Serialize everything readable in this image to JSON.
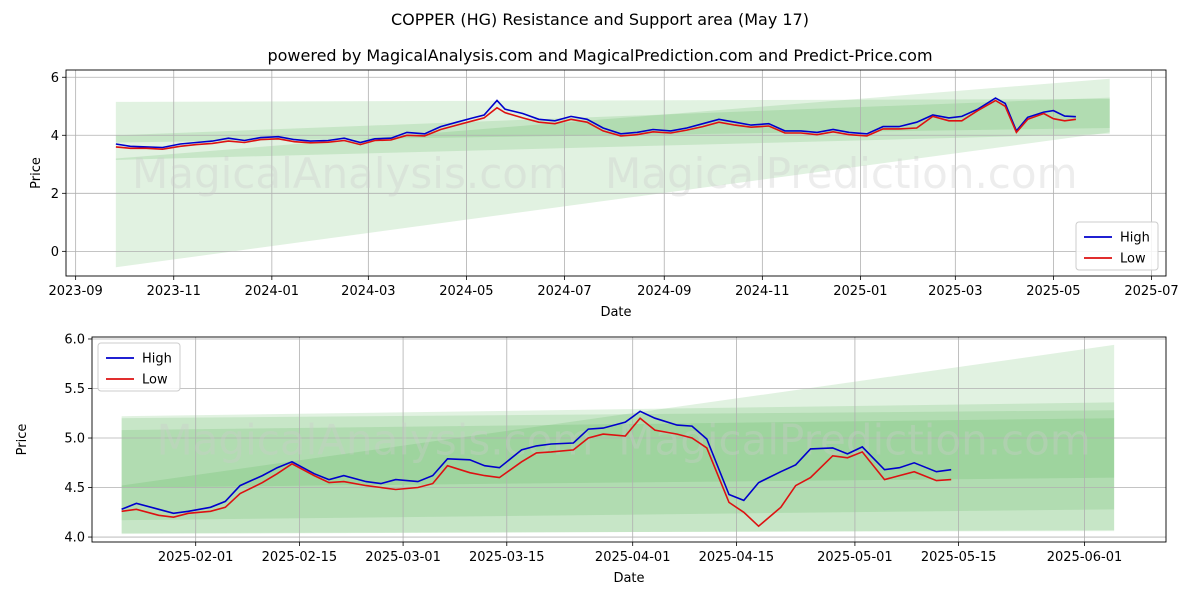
{
  "title": "COPPER (HG) Resistance and Support area (May 17)",
  "subtitle": "powered by MagicalAnalysis.com and MagicalPrediction.com and Predict-Price.com",
  "watermark": [
    "MagicalAnalysis.com",
    "MagicalPrediction.com"
  ],
  "colors": {
    "high": "#0000cc",
    "low": "#dd1111",
    "band": "#2ca02c",
    "grid": "#b0b0b0"
  },
  "chart_data": [
    {
      "type": "line",
      "xlabel": "Date",
      "ylabel": "Price",
      "xlim": [
        "2023-08-26",
        "2025-07-10"
      ],
      "ylim": [
        -0.85,
        6.25
      ],
      "x_ticks": [
        "2023-09",
        "2023-11",
        "2024-01",
        "2024-03",
        "2024-05",
        "2024-07",
        "2024-09",
        "2024-11",
        "2025-01",
        "2025-03",
        "2025-05",
        "2025-07"
      ],
      "y_ticks": [
        0,
        2,
        4,
        6
      ],
      "grid": true,
      "legend": "bottom-right",
      "bands": [
        {
          "x": [
            "2023-09-26",
            "2025-06-05"
          ],
          "upper": [
            5.15,
            5.25
          ],
          "lower": [
            3.75,
            4.25
          ]
        },
        {
          "x": [
            "2023-09-26",
            "2025-06-05"
          ],
          "upper": [
            4.0,
            5.3
          ],
          "lower": [
            3.15,
            4.05
          ]
        },
        {
          "x": [
            "2023-09-26",
            "2025-06-05"
          ],
          "upper": [
            3.2,
            5.95
          ],
          "lower": [
            -0.55,
            4.1
          ]
        }
      ],
      "series": [
        {
          "name": "High",
          "x": [
            "2023-09-26",
            "2023-10-05",
            "2023-10-15",
            "2023-10-25",
            "2023-11-05",
            "2023-11-15",
            "2023-11-25",
            "2023-12-05",
            "2023-12-15",
            "2023-12-25",
            "2024-01-05",
            "2024-01-15",
            "2024-01-25",
            "2024-02-05",
            "2024-02-15",
            "2024-02-25",
            "2024-03-05",
            "2024-03-15",
            "2024-03-25",
            "2024-04-05",
            "2024-04-15",
            "2024-04-25",
            "2024-05-05",
            "2024-05-12",
            "2024-05-20",
            "2024-05-25",
            "2024-06-05",
            "2024-06-15",
            "2024-06-25",
            "2024-07-05",
            "2024-07-15",
            "2024-07-25",
            "2024-08-05",
            "2024-08-15",
            "2024-08-25",
            "2024-09-05",
            "2024-09-15",
            "2024-09-25",
            "2024-10-05",
            "2024-10-15",
            "2024-10-25",
            "2024-11-05",
            "2024-11-15",
            "2024-11-25",
            "2024-12-05",
            "2024-12-15",
            "2024-12-25",
            "2025-01-05",
            "2025-01-15",
            "2025-01-25",
            "2025-02-05",
            "2025-02-15",
            "2025-02-25",
            "2025-03-05",
            "2025-03-15",
            "2025-03-26",
            "2025-04-01",
            "2025-04-08",
            "2025-04-15",
            "2025-04-25",
            "2025-05-01",
            "2025-05-08",
            "2025-05-15"
          ],
          "values": [
            3.7,
            3.62,
            3.6,
            3.58,
            3.7,
            3.75,
            3.8,
            3.9,
            3.82,
            3.92,
            3.95,
            3.85,
            3.8,
            3.82,
            3.9,
            3.75,
            3.88,
            3.9,
            4.1,
            4.05,
            4.3,
            4.45,
            4.6,
            4.7,
            5.2,
            4.9,
            4.75,
            4.55,
            4.5,
            4.65,
            4.55,
            4.25,
            4.05,
            4.1,
            4.2,
            4.15,
            4.25,
            4.4,
            4.55,
            4.45,
            4.35,
            4.4,
            4.15,
            4.15,
            4.1,
            4.2,
            4.1,
            4.05,
            4.3,
            4.3,
            4.45,
            4.7,
            4.6,
            4.65,
            4.9,
            5.28,
            5.1,
            4.15,
            4.62,
            4.8,
            4.85,
            4.66,
            4.64
          ]
        },
        {
          "name": "Low",
          "x": [
            "2023-09-26",
            "2023-10-05",
            "2023-10-15",
            "2023-10-25",
            "2023-11-05",
            "2023-11-15",
            "2023-11-25",
            "2023-12-05",
            "2023-12-15",
            "2023-12-25",
            "2024-01-05",
            "2024-01-15",
            "2024-01-25",
            "2024-02-05",
            "2024-02-15",
            "2024-02-25",
            "2024-03-05",
            "2024-03-15",
            "2024-03-25",
            "2024-04-05",
            "2024-04-15",
            "2024-04-25",
            "2024-05-05",
            "2024-05-12",
            "2024-05-20",
            "2024-05-25",
            "2024-06-05",
            "2024-06-15",
            "2024-06-25",
            "2024-07-05",
            "2024-07-15",
            "2024-07-25",
            "2024-08-05",
            "2024-08-15",
            "2024-08-25",
            "2024-09-05",
            "2024-09-15",
            "2024-09-25",
            "2024-10-05",
            "2024-10-15",
            "2024-10-25",
            "2024-11-05",
            "2024-11-15",
            "2024-11-25",
            "2024-12-05",
            "2024-12-15",
            "2024-12-25",
            "2025-01-05",
            "2025-01-15",
            "2025-01-25",
            "2025-02-05",
            "2025-02-15",
            "2025-02-25",
            "2025-03-05",
            "2025-03-15",
            "2025-03-26",
            "2025-04-01",
            "2025-04-08",
            "2025-04-15",
            "2025-04-25",
            "2025-05-01",
            "2025-05-08",
            "2025-05-15"
          ],
          "values": [
            3.6,
            3.55,
            3.55,
            3.52,
            3.62,
            3.68,
            3.72,
            3.8,
            3.75,
            3.85,
            3.88,
            3.78,
            3.74,
            3.76,
            3.82,
            3.68,
            3.82,
            3.84,
            4.0,
            3.98,
            4.2,
            4.35,
            4.5,
            4.6,
            4.95,
            4.78,
            4.6,
            4.45,
            4.4,
            4.55,
            4.45,
            4.15,
            3.98,
            4.02,
            4.12,
            4.08,
            4.18,
            4.3,
            4.45,
            4.35,
            4.28,
            4.32,
            4.08,
            4.08,
            4.02,
            4.12,
            4.02,
            3.98,
            4.22,
            4.22,
            4.25,
            4.65,
            4.5,
            4.5,
            4.85,
            5.2,
            5.0,
            4.1,
            4.55,
            4.75,
            4.57,
            4.5,
            4.55
          ]
        }
      ]
    },
    {
      "type": "line",
      "xlabel": "Date",
      "ylabel": "Price",
      "xlim": [
        "2025-01-18",
        "2025-06-12"
      ],
      "ylim": [
        3.95,
        6.02
      ],
      "x_ticks": [
        "2025-02-01",
        "2025-02-15",
        "2025-03-01",
        "2025-03-15",
        "2025-04-01",
        "2025-04-15",
        "2025-05-01",
        "2025-05-15",
        "2025-06-01"
      ],
      "y_ticks": [
        4.0,
        4.5,
        5.0,
        5.5,
        6.0
      ],
      "grid": true,
      "legend": "top-left",
      "bands": [
        {
          "x": [
            "2025-01-22",
            "2025-06-05"
          ],
          "upper": [
            5.08,
            5.2
          ],
          "lower": [
            4.17,
            4.28
          ]
        },
        {
          "x": [
            "2025-01-22",
            "2025-06-05"
          ],
          "upper": [
            5.2,
            5.28
          ],
          "lower": [
            4.04,
            4.06
          ]
        },
        {
          "x": [
            "2025-01-22",
            "2025-06-05"
          ],
          "upper": [
            5.22,
            5.36
          ],
          "lower": [
            4.5,
            4.6
          ]
        },
        {
          "x": [
            "2025-01-22",
            "2025-06-05"
          ],
          "upper": [
            4.52,
            5.94
          ],
          "lower": [
            4.03,
            4.07
          ]
        }
      ],
      "series": [
        {
          "name": "High",
          "x": [
            "2025-01-22",
            "2025-01-24",
            "2025-01-27",
            "2025-01-29",
            "2025-01-31",
            "2025-02-03",
            "2025-02-05",
            "2025-02-07",
            "2025-02-10",
            "2025-02-12",
            "2025-02-14",
            "2025-02-17",
            "2025-02-19",
            "2025-02-21",
            "2025-02-24",
            "2025-02-26",
            "2025-02-28",
            "2025-03-03",
            "2025-03-05",
            "2025-03-07",
            "2025-03-10",
            "2025-03-12",
            "2025-03-14",
            "2025-03-17",
            "2025-03-19",
            "2025-03-21",
            "2025-03-24",
            "2025-03-26",
            "2025-03-28",
            "2025-03-31",
            "2025-04-02",
            "2025-04-04",
            "2025-04-07",
            "2025-04-09",
            "2025-04-11",
            "2025-04-14",
            "2025-04-16",
            "2025-04-18",
            "2025-04-21",
            "2025-04-23",
            "2025-04-25",
            "2025-04-28",
            "2025-04-30",
            "2025-05-02",
            "2025-05-05",
            "2025-05-07",
            "2025-05-09",
            "2025-05-12",
            "2025-05-14"
          ],
          "values": [
            4.28,
            4.34,
            4.28,
            4.24,
            4.26,
            4.3,
            4.36,
            4.52,
            4.62,
            4.7,
            4.76,
            4.64,
            4.58,
            4.62,
            4.56,
            4.54,
            4.58,
            4.56,
            4.62,
            4.79,
            4.78,
            4.72,
            4.7,
            4.88,
            4.92,
            4.94,
            4.95,
            5.09,
            5.1,
            5.16,
            5.27,
            5.2,
            5.13,
            5.12,
            4.99,
            4.43,
            4.37,
            4.55,
            4.66,
            4.73,
            4.89,
            4.9,
            4.84,
            4.91,
            4.68,
            4.7,
            4.75,
            4.66,
            4.68
          ]
        },
        {
          "name": "Low",
          "x": [
            "2025-01-22",
            "2025-01-24",
            "2025-01-27",
            "2025-01-29",
            "2025-01-31",
            "2025-02-03",
            "2025-02-05",
            "2025-02-07",
            "2025-02-10",
            "2025-02-12",
            "2025-02-14",
            "2025-02-17",
            "2025-02-19",
            "2025-02-21",
            "2025-02-24",
            "2025-02-26",
            "2025-02-28",
            "2025-03-03",
            "2025-03-05",
            "2025-03-07",
            "2025-03-10",
            "2025-03-12",
            "2025-03-14",
            "2025-03-17",
            "2025-03-19",
            "2025-03-21",
            "2025-03-24",
            "2025-03-26",
            "2025-03-28",
            "2025-03-31",
            "2025-04-02",
            "2025-04-04",
            "2025-04-07",
            "2025-04-09",
            "2025-04-11",
            "2025-04-14",
            "2025-04-16",
            "2025-04-18",
            "2025-04-21",
            "2025-04-23",
            "2025-04-25",
            "2025-04-28",
            "2025-04-30",
            "2025-05-02",
            "2025-05-05",
            "2025-05-07",
            "2025-05-09",
            "2025-05-12",
            "2025-05-14"
          ],
          "values": [
            4.26,
            4.28,
            4.22,
            4.2,
            4.24,
            4.26,
            4.3,
            4.44,
            4.55,
            4.64,
            4.74,
            4.62,
            4.55,
            4.56,
            4.52,
            4.5,
            4.48,
            4.5,
            4.54,
            4.72,
            4.65,
            4.62,
            4.6,
            4.76,
            4.85,
            4.86,
            4.88,
            5.0,
            5.04,
            5.02,
            5.2,
            5.08,
            5.04,
            5.0,
            4.9,
            4.35,
            4.25,
            4.11,
            4.3,
            4.52,
            4.6,
            4.82,
            4.8,
            4.86,
            4.58,
            4.62,
            4.66,
            4.57,
            4.58
          ]
        }
      ]
    }
  ]
}
